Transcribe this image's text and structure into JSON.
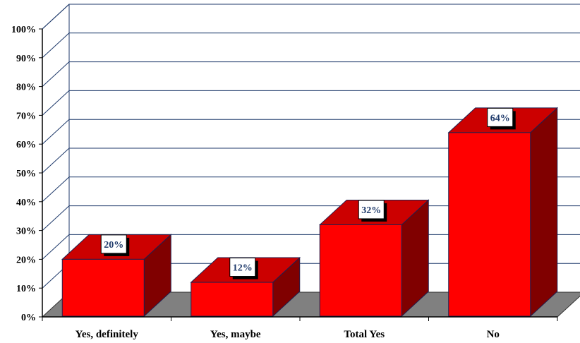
{
  "chart_data": {
    "type": "bar",
    "style": "3d",
    "title": "",
    "xlabel": "",
    "ylabel": "",
    "categories": [
      "Yes, definitely",
      "Yes, maybe",
      "Total Yes",
      "No"
    ],
    "values": [
      20,
      12,
      32,
      64
    ],
    "data_labels": [
      "20%",
      "12%",
      "32%",
      "64%"
    ],
    "ylim": [
      0,
      100
    ],
    "yticks": [
      "0%",
      "10%",
      "20%",
      "30%",
      "40%",
      "50%",
      "60%",
      "70%",
      "80%",
      "90%",
      "100%"
    ],
    "grid": true,
    "legend": "none"
  },
  "colors": {
    "bar_front": "#ff0000",
    "bar_top": "#cc0000",
    "bar_side": "#800000",
    "floor": "#808080",
    "gridline": "#1f3a6b",
    "label_text": "#1f3a6b"
  }
}
